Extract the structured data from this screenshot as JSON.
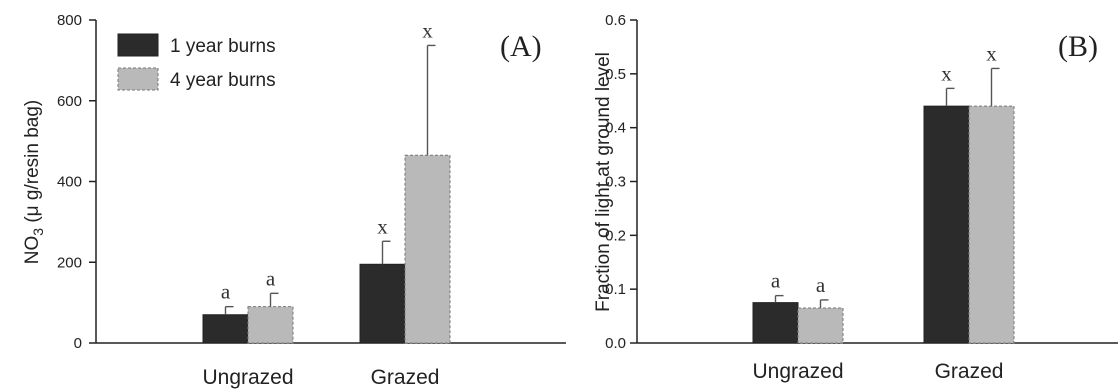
{
  "colors": {
    "series_0": "#2b2b2b",
    "series_1": "#b9b9b9"
  },
  "chart_data": [
    {
      "type": "bar",
      "panel_label": "(A)",
      "ylabel": "NO3 (μ g/resin bag)",
      "ylabel_parts": {
        "main": "NO",
        "sub": "3",
        "rest": " (μ g/resin bag)"
      },
      "xlabel": "",
      "ylim": [
        0,
        800
      ],
      "yticks": [
        "0",
        "200",
        "400",
        "600",
        "800"
      ],
      "categories": [
        "Ungrazed",
        "Grazed"
      ],
      "legend": {
        "placement": "top-left"
      },
      "series": [
        {
          "name": "1 year burns",
          "values": [
            70,
            195
          ],
          "errors": [
            20,
            57
          ],
          "labels": [
            "a",
            "x"
          ]
        },
        {
          "name": "4 year burns",
          "values": [
            90,
            465
          ],
          "errors": [
            33,
            272
          ],
          "labels": [
            "a",
            "x"
          ]
        }
      ]
    },
    {
      "type": "bar",
      "panel_label": "(B)",
      "ylabel": "Fraction of light at ground level",
      "xlabel": "",
      "ylim": [
        0,
        0.6
      ],
      "yticks": [
        "0.0",
        "0.1",
        "0.2",
        "0.3",
        "0.4",
        "0.5",
        "0.6"
      ],
      "categories": [
        "Ungrazed",
        "Grazed"
      ],
      "series": [
        {
          "name": "1 year burns",
          "values": [
            0.075,
            0.44
          ],
          "errors": [
            0.013,
            0.033
          ],
          "labels": [
            "a",
            "x"
          ]
        },
        {
          "name": "4 year burns",
          "values": [
            0.065,
            0.44
          ],
          "errors": [
            0.015,
            0.07
          ],
          "labels": [
            "a",
            "x"
          ]
        }
      ]
    }
  ]
}
